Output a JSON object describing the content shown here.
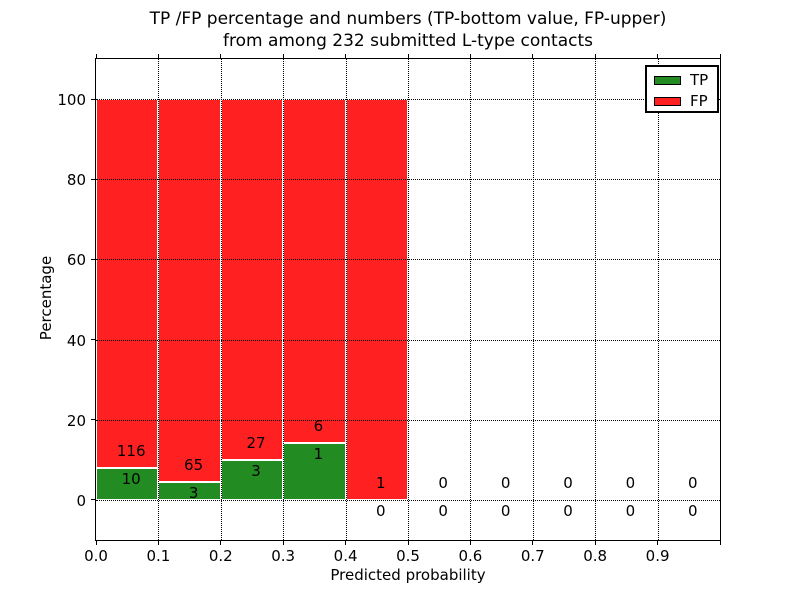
{
  "figure": {
    "title_line1": "TP /FP percentage and numbers (TP-bottom value, FP-upper)",
    "title_line2": "from among 232 submitted L-type contacts",
    "xlabel": "Predicted probability",
    "ylabel": "Percentage"
  },
  "legend": {
    "items": [
      {
        "label": "TP",
        "color": "#228b22"
      },
      {
        "label": "FP",
        "color": "#ff2121"
      }
    ]
  },
  "colors": {
    "tp": "#228b22",
    "fp": "#ff2121",
    "grid": "#000000",
    "bar_edge": "#ffffff",
    "background": "#ffffff",
    "text": "#000000"
  },
  "chart_data": {
    "type": "bar",
    "stacked": true,
    "normalized_to": 100,
    "title": "TP /FP percentage and numbers (TP-bottom value, FP-upper)\nfrom among 232 submitted L-type contacts",
    "xlabel": "Predicted probability",
    "ylabel": "Percentage",
    "xlim": [
      0.0,
      1.0
    ],
    "ylim": [
      -10,
      110
    ],
    "grid": "dotted, drawn above bars",
    "legend_position": "upper right",
    "bar_width": 0.1,
    "bin_starts": [
      0.0,
      0.1,
      0.2,
      0.3,
      0.4,
      0.5,
      0.6,
      0.7,
      0.8,
      0.9
    ],
    "x_tick_labels": [
      "0.0",
      "0.1",
      "0.2",
      "0.3",
      "0.4",
      "0.5",
      "0.6",
      "0.7",
      "0.8",
      "0.9"
    ],
    "y_ticks": [
      0,
      20,
      40,
      60,
      80,
      100
    ],
    "total_contacts": 232,
    "series": [
      {
        "name": "TP",
        "color": "#228b22",
        "counts": [
          10,
          3,
          3,
          1,
          0,
          0,
          0,
          0,
          0,
          0
        ],
        "percent": [
          7.94,
          4.41,
          10.0,
          14.29,
          0,
          0,
          0,
          0,
          0,
          0
        ]
      },
      {
        "name": "FP",
        "color": "#ff2121",
        "counts": [
          116,
          65,
          27,
          6,
          1,
          0,
          0,
          0,
          0,
          0
        ],
        "percent": [
          92.06,
          95.59,
          90.0,
          85.71,
          100,
          0,
          0,
          0,
          0,
          0
        ]
      }
    ]
  }
}
